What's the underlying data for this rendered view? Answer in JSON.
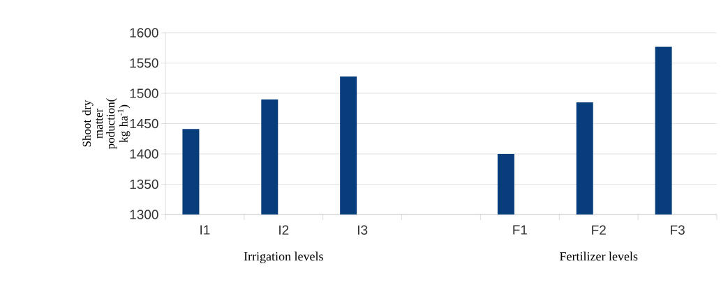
{
  "chart_data": {
    "type": "bar",
    "categories": [
      "I1",
      "I2",
      "I3",
      null,
      "F1",
      "F2",
      "F3"
    ],
    "values": [
      1441,
      1490,
      1528,
      null,
      1400,
      1485,
      1577
    ],
    "color": "#083d7c",
    "ylabel": "Shoot dry matter poduction( kg ha$^{-1}$)",
    "ylim": [
      1300,
      1600
    ],
    "yticks": [
      1300,
      1350,
      1400,
      1450,
      1500,
      1550,
      1600
    ],
    "grid": "y",
    "annotations": [
      "Irrigation levels",
      "Fertilizer levels"
    ]
  }
}
